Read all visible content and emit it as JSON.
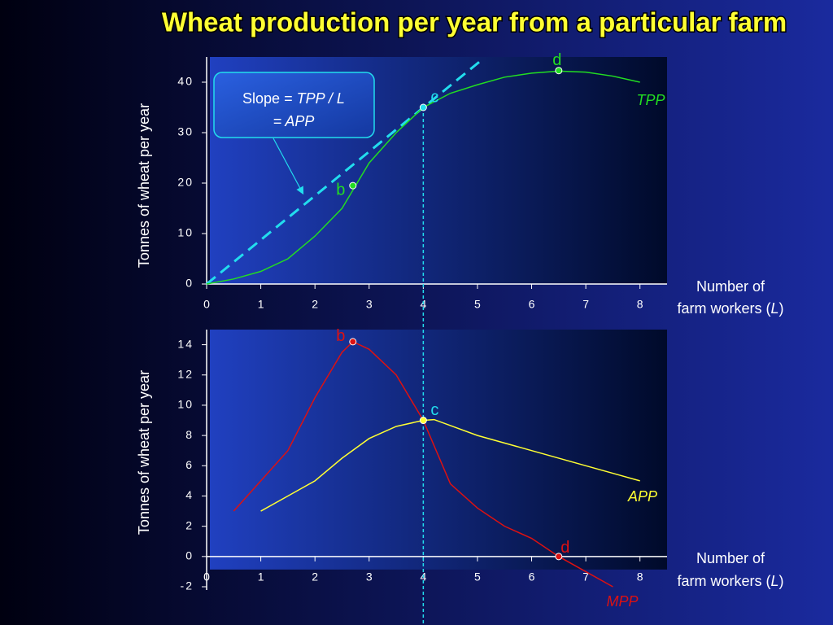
{
  "chart_data": [
    {
      "type": "line",
      "title": "Wheat production per year from a particular farm",
      "y_label": "Tonnes of wheat  per year",
      "x_label": [
        "Number of",
        "farm workers (",
        "L",
        ")"
      ],
      "xlim": [
        0,
        8.5
      ],
      "ylim": [
        0,
        45
      ],
      "xticks": [
        0,
        1,
        2,
        3,
        4,
        5,
        6,
        7,
        8
      ],
      "yticks": [
        0,
        10,
        20,
        30,
        40
      ],
      "series": [
        {
          "name": "TPP",
          "color": "#22dd22",
          "x": [
            0,
            0.5,
            1,
            1.5,
            2,
            2.5,
            2.75,
            3,
            3.5,
            4,
            4.5,
            5,
            5.5,
            6,
            6.5,
            7,
            7.5,
            8
          ],
          "values": [
            0,
            1,
            2.5,
            5,
            9.5,
            15,
            19.5,
            24,
            30,
            35,
            37.8,
            39.5,
            41,
            41.8,
            42.2,
            42,
            41.2,
            40
          ]
        }
      ],
      "tangent": {
        "color": "#22ddee",
        "x": [
          0,
          5.1
        ],
        "values": [
          0,
          44.6
        ]
      },
      "annotation": [
        "Slope = ",
        "TPP / L",
        "= APP"
      ],
      "points": [
        {
          "label": "b",
          "x": 2.7,
          "value": 19.5,
          "color": "#22dd22",
          "label_color": "#22dd22"
        },
        {
          "label": "c",
          "x": 4,
          "value": 35,
          "color": "#22ddee",
          "label_color": "#22ddee"
        },
        {
          "label": "d",
          "x": 6.5,
          "value": 42.3,
          "color": "#22dd22",
          "label_color": "#22dd22"
        }
      ],
      "vline": 4
    },
    {
      "type": "line",
      "y_label": "Tonnes of wheat  per year",
      "x_label": [
        "Number of",
        "farm workers (",
        "L",
        ")"
      ],
      "xlim": [
        0,
        8.5
      ],
      "ylim": [
        -2,
        15
      ],
      "xticks": [
        0,
        1,
        2,
        3,
        4,
        5,
        6,
        7,
        8
      ],
      "yticks": [
        -2,
        0,
        2,
        4,
        6,
        8,
        10,
        12,
        14
      ],
      "series": [
        {
          "name": "APP",
          "color": "#ffff33",
          "x": [
            1,
            1.5,
            2,
            2.5,
            3,
            3.5,
            4,
            4.2,
            5,
            6,
            7,
            8
          ],
          "values": [
            3,
            4,
            5,
            6.5,
            7.8,
            8.6,
            9,
            9.05,
            8,
            7,
            6,
            5
          ]
        },
        {
          "name": "MPP",
          "color": "#dd1111",
          "x": [
            0.5,
            1,
            1.5,
            2,
            2.5,
            2.7,
            3,
            3.5,
            4,
            4.5,
            5,
            5.5,
            6,
            6.5,
            7,
            7.5
          ],
          "values": [
            3,
            5,
            7,
            10.5,
            13.5,
            14.2,
            13.7,
            12,
            9,
            4.8,
            3.2,
            2,
            1.2,
            0,
            -1,
            -2
          ]
        }
      ],
      "points": [
        {
          "label": "b",
          "x": 2.7,
          "value": 14.2,
          "color": "#dd1111",
          "label_color": "#dd1111"
        },
        {
          "label": "c",
          "x": 4,
          "value": 9,
          "color": "#ffff33",
          "label_color": "#22ddee"
        },
        {
          "label": "d",
          "x": 6.5,
          "value": 0,
          "color": "#dd1111",
          "label_color": "#dd1111"
        }
      ],
      "vline": 4
    }
  ]
}
